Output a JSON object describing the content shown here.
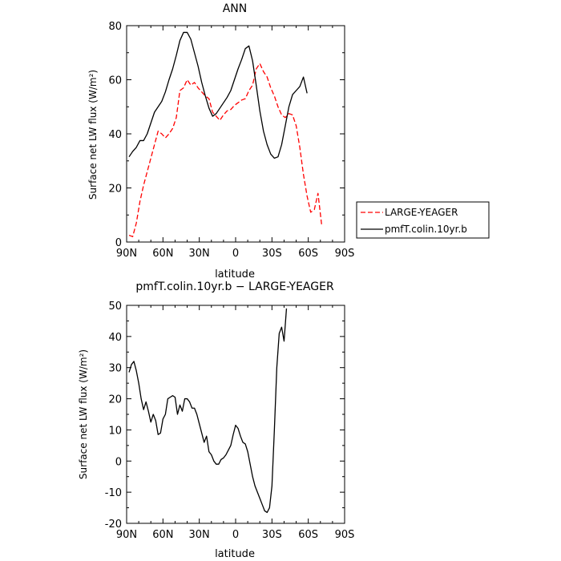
{
  "chart_data": [
    {
      "type": "line",
      "title": "ANN",
      "xlabel": "latitude",
      "ylabel": "Surface net LW flux (W/m²)",
      "xlim": [
        -90,
        90
      ],
      "ylim": [
        0,
        80
      ],
      "x_ticks": [
        {
          "value": -90,
          "label": "90N"
        },
        {
          "value": -60,
          "label": "60N"
        },
        {
          "value": -30,
          "label": "30N"
        },
        {
          "value": 0,
          "label": "0"
        },
        {
          "value": 30,
          "label": "30S"
        },
        {
          "value": 60,
          "label": "60S"
        },
        {
          "value": 90,
          "label": "90S"
        }
      ],
      "y_ticks": [
        0,
        20,
        40,
        60,
        80
      ],
      "legend_position": "right",
      "series": [
        {
          "name": "LARGE-YEAGER",
          "color": "#ff0000",
          "dash": "dashed",
          "x": [
            -88,
            -85,
            -82,
            -79,
            -76,
            -73,
            -70,
            -67,
            -64,
            -61,
            -58,
            -55,
            -52,
            -49,
            -46,
            -43,
            -40,
            -37,
            -34,
            -31,
            -28,
            -25,
            -22,
            -19,
            -16,
            -13,
            -10,
            -7,
            -4,
            -1,
            2,
            5,
            8,
            11,
            14,
            17,
            20,
            23,
            26,
            29,
            32,
            35,
            38,
            41,
            44,
            47,
            50,
            53,
            56,
            59,
            62,
            65,
            68,
            71,
            74,
            77,
            79,
            80
          ],
          "y": [
            2.5,
            2,
            7,
            15,
            21,
            26,
            31,
            36,
            41,
            40,
            38.5,
            40,
            42,
            46,
            56,
            57,
            60,
            58,
            59,
            57,
            55.5,
            54,
            53,
            48,
            46.5,
            45,
            47,
            48.5,
            49,
            50.5,
            51.5,
            52.5,
            53,
            56,
            58,
            64,
            66,
            63,
            61,
            57,
            54,
            50,
            47,
            46,
            47.5,
            47,
            43,
            35,
            25,
            17,
            11,
            12,
            18,
            6.5,
            null,
            null,
            null,
            null
          ]
        },
        {
          "name": "pmfT.colin.10yr.b",
          "color": "#000000",
          "dash": "solid",
          "x": [
            -88,
            -85,
            -82,
            -79,
            -76,
            -73,
            -70,
            -67,
            -64,
            -61,
            -58,
            -55,
            -52,
            -49,
            -46,
            -43,
            -40,
            -37,
            -34,
            -31,
            -28,
            -25,
            -22,
            -19,
            -16,
            -13,
            -10,
            -7,
            -4,
            -1,
            2,
            5,
            8,
            11,
            14,
            17,
            20,
            23,
            26,
            29,
            32,
            35,
            38,
            41,
            44,
            47,
            50,
            53,
            56,
            59,
            62,
            65,
            68,
            71,
            74,
            77,
            80,
            83,
            86,
            89
          ],
          "y": [
            31.5,
            33.5,
            35,
            37.5,
            37.5,
            40,
            44,
            48,
            50,
            52,
            55.5,
            60,
            64,
            69,
            74.5,
            77.5,
            77.5,
            75,
            70,
            65,
            59,
            54,
            49.5,
            46.5,
            47.5,
            49.5,
            51.5,
            53.5,
            56,
            60,
            64,
            67.5,
            71.5,
            72.5,
            67,
            58,
            48.5,
            41,
            36,
            32.5,
            31,
            31.5,
            36,
            43,
            50,
            54.5,
            56,
            57.5,
            61,
            55,
            null,
            null,
            null,
            null,
            null,
            null,
            null,
            null,
            null,
            null
          ]
        }
      ]
    },
    {
      "type": "line",
      "title": "pmfT.colin.10yr.b − LARGE-YEAGER",
      "xlabel": "latitude",
      "ylabel": "Surface net LW flux (W/m²)",
      "xlim": [
        -90,
        90
      ],
      "ylim": [
        -20,
        50
      ],
      "x_ticks": [
        {
          "value": -90,
          "label": "90N"
        },
        {
          "value": -60,
          "label": "60N"
        },
        {
          "value": -30,
          "label": "30N"
        },
        {
          "value": 0,
          "label": "0"
        },
        {
          "value": 30,
          "label": "30S"
        },
        {
          "value": 60,
          "label": "60S"
        },
        {
          "value": 90,
          "label": "90S"
        }
      ],
      "y_ticks": [
        -20,
        -10,
        0,
        10,
        20,
        30,
        40,
        50
      ],
      "series": [
        {
          "name": "",
          "color": "#000000",
          "dash": "solid",
          "x": [
            -88,
            -86,
            -84,
            -82,
            -80,
            -78,
            -76,
            -74,
            -72,
            -70,
            -68,
            -66,
            -64,
            -62,
            -60,
            -58,
            -56,
            -54,
            -52,
            -50,
            -48,
            -46,
            -44,
            -42,
            -40,
            -38,
            -36,
            -34,
            -32,
            -30,
            -28,
            -26,
            -24,
            -22,
            -20,
            -18,
            -16,
            -14,
            -12,
            -10,
            -8,
            -6,
            -4,
            -2,
            0,
            2,
            4,
            6,
            8,
            10,
            12,
            14,
            16,
            18,
            20,
            22,
            24,
            26,
            28,
            30,
            32,
            34,
            36,
            38,
            40,
            42,
            44,
            46,
            48,
            50,
            52,
            54,
            56,
            58,
            60,
            62,
            64,
            66,
            68,
            70,
            72,
            74,
            76,
            78,
            80
          ],
          "y": [
            28.5,
            31,
            32,
            29,
            25,
            20,
            16.5,
            19,
            16,
            12.5,
            15,
            13,
            8.5,
            9,
            13.5,
            15,
            20,
            20.5,
            21,
            20.5,
            15,
            18,
            16,
            20,
            20,
            19,
            17,
            17,
            15,
            12,
            9,
            6,
            8,
            3,
            2,
            0,
            -1,
            -1,
            0.5,
            1,
            2,
            3.5,
            5,
            8.5,
            11.5,
            10.5,
            8,
            6,
            5.5,
            3,
            -1,
            -5,
            -8,
            -10,
            -12,
            -14,
            -16,
            -16.5,
            -15,
            -8,
            10,
            30,
            41,
            43,
            38.5,
            49,
            null,
            null,
            null,
            null,
            null,
            null,
            null,
            null,
            null,
            null,
            null,
            null,
            null,
            null,
            null,
            null,
            null,
            null,
            null
          ]
        }
      ]
    }
  ]
}
